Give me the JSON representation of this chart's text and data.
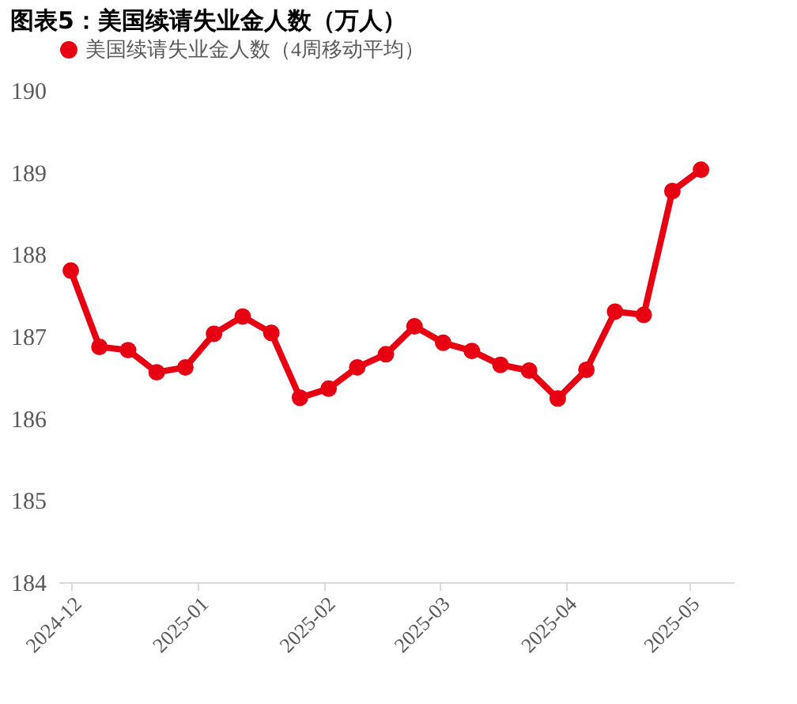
{
  "chart_data": {
    "type": "line",
    "title": "图表5：美国续请失业金人数（万人）",
    "x": [
      "2024-12-01",
      "2024-12-08",
      "2024-12-15",
      "2024-12-22",
      "2024-12-29",
      "2025-01-05",
      "2025-01-12",
      "2025-01-19",
      "2025-01-26",
      "2025-02-02",
      "2025-02-09",
      "2025-02-16",
      "2025-02-23",
      "2025-03-02",
      "2025-03-09",
      "2025-03-16",
      "2025-03-23",
      "2025-03-30",
      "2025-04-06",
      "2025-04-13",
      "2025-04-20",
      "2025-04-27",
      "2025-05-04"
    ],
    "series": [
      {
        "name": "美国续请失业金人数（4周移动平均）",
        "color": "#e60012",
        "values": [
          187.8,
          186.87,
          186.83,
          186.56,
          186.62,
          187.03,
          187.24,
          187.04,
          186.25,
          186.36,
          186.62,
          186.78,
          187.12,
          186.92,
          186.82,
          186.65,
          186.58,
          186.24,
          186.59,
          187.3,
          187.26,
          188.77,
          189.03
        ]
      }
    ],
    "ylim": [
      184,
      190
    ],
    "yticks": [
      184,
      185,
      186,
      187,
      188,
      189,
      190
    ],
    "xlim": [
      "2024-11-28",
      "2025-05-12"
    ],
    "xticks": [
      "2024-12",
      "2025-01",
      "2025-02",
      "2025-03",
      "2025-04",
      "2025-05"
    ],
    "grid": false,
    "legend": "top",
    "marker": "circle",
    "line_style": "solid"
  }
}
